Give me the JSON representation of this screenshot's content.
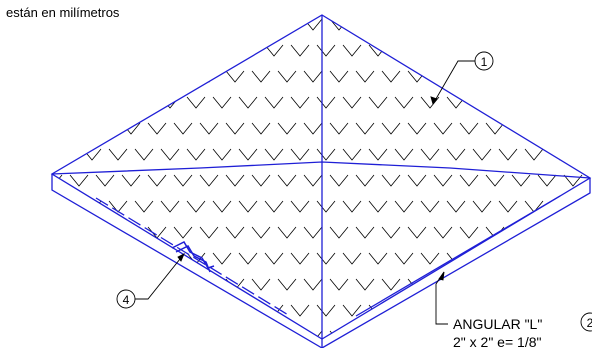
{
  "note": {
    "text": "están en milímetros"
  },
  "callouts": {
    "c1": "1",
    "c2": "2",
    "c4": "4"
  },
  "angle_label": {
    "line1": "ANGULAR \"L\"",
    "line2": "2\" x 2\" e= 1/8\""
  },
  "colors": {
    "outline": "#1f1fd6",
    "pattern": "#000000",
    "background": "#ffffff"
  }
}
